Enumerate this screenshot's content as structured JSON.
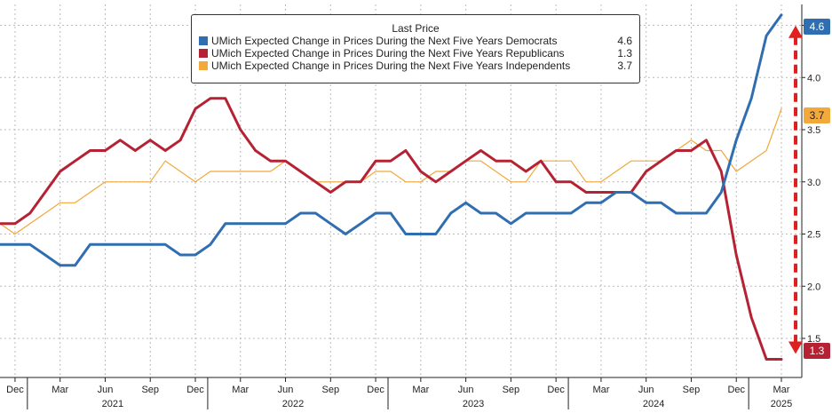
{
  "chart_data": {
    "type": "line",
    "title": "",
    "legend_title": "Last Price",
    "legend_position": "top-center",
    "grid": true,
    "y_axis_side": "right",
    "ylim": [
      1.1,
      4.7
    ],
    "y_ticks": [
      "1.5",
      "2.0",
      "2.5",
      "3.0",
      "3.5",
      "4.0",
      "4.5"
    ],
    "x_tick_labels": [
      "Dec",
      "Mar",
      "Jun",
      "Sep",
      "Dec",
      "Mar",
      "Jun",
      "Sep",
      "Dec",
      "Mar",
      "Jun",
      "Sep",
      "Dec",
      "Mar",
      "Jun",
      "Sep",
      "Dec",
      "Mar"
    ],
    "year_labels": [
      "2021",
      "2022",
      "2023",
      "2024",
      "2025"
    ],
    "x": [
      "2020-11",
      "2020-12",
      "2021-01",
      "2021-02",
      "2021-03",
      "2021-04",
      "2021-05",
      "2021-06",
      "2021-07",
      "2021-08",
      "2021-09",
      "2021-10",
      "2021-11",
      "2021-12",
      "2022-01",
      "2022-02",
      "2022-03",
      "2022-04",
      "2022-05",
      "2022-06",
      "2022-07",
      "2022-08",
      "2022-09",
      "2022-10",
      "2022-11",
      "2022-12",
      "2023-01",
      "2023-02",
      "2023-03",
      "2023-04",
      "2023-05",
      "2023-06",
      "2023-07",
      "2023-08",
      "2023-09",
      "2023-10",
      "2023-11",
      "2023-12",
      "2024-01",
      "2024-02",
      "2024-03",
      "2024-04",
      "2024-05",
      "2024-06",
      "2024-07",
      "2024-08",
      "2024-09",
      "2024-10",
      "2024-11",
      "2024-12",
      "2025-01",
      "2025-02",
      "2025-03"
    ],
    "series": [
      {
        "name": "UMich Expected Change in Prices During the Next Five Years Democrats",
        "last_value": "4.6",
        "color": "#2f6eb1",
        "values": [
          2.4,
          2.4,
          2.4,
          2.3,
          2.2,
          2.2,
          2.4,
          2.4,
          2.4,
          2.4,
          2.4,
          2.4,
          2.3,
          2.3,
          2.4,
          2.6,
          2.6,
          2.6,
          2.6,
          2.6,
          2.7,
          2.7,
          2.6,
          2.5,
          2.6,
          2.7,
          2.7,
          2.5,
          2.5,
          2.5,
          2.7,
          2.8,
          2.7,
          2.7,
          2.6,
          2.7,
          2.7,
          2.7,
          2.7,
          2.8,
          2.8,
          2.9,
          2.9,
          2.8,
          2.8,
          2.7,
          2.7,
          2.7,
          2.9,
          3.4,
          3.8,
          4.4,
          4.6
        ]
      },
      {
        "name": "UMich Expected Change in Prices During the Next Five Years Republicans",
        "last_value": "1.3",
        "color": "#b52233",
        "values": [
          2.6,
          2.6,
          2.7,
          2.9,
          3.1,
          3.2,
          3.3,
          3.3,
          3.4,
          3.3,
          3.4,
          3.3,
          3.4,
          3.7,
          3.8,
          3.8,
          3.5,
          3.3,
          3.2,
          3.2,
          3.1,
          3.0,
          2.9,
          3.0,
          3.0,
          3.2,
          3.2,
          3.3,
          3.1,
          3.0,
          3.1,
          3.2,
          3.3,
          3.2,
          3.2,
          3.1,
          3.2,
          3.0,
          3.0,
          2.9,
          2.9,
          2.9,
          2.9,
          3.1,
          3.2,
          3.3,
          3.3,
          3.4,
          3.1,
          2.3,
          1.7,
          1.3,
          1.3
        ]
      },
      {
        "name": "UMich Expected Change in Prices During the Next Five Years Independents",
        "last_value": "3.7",
        "color": "#f2a83a",
        "values": [
          2.6,
          2.5,
          2.6,
          2.7,
          2.8,
          2.8,
          2.9,
          3.0,
          3.0,
          3.0,
          3.0,
          3.2,
          3.1,
          3.0,
          3.1,
          3.1,
          3.1,
          3.1,
          3.1,
          3.2,
          3.1,
          3.0,
          3.0,
          3.0,
          3.0,
          3.1,
          3.1,
          3.0,
          3.0,
          3.1,
          3.1,
          3.2,
          3.2,
          3.1,
          3.0,
          3.0,
          3.2,
          3.2,
          3.2,
          3.0,
          3.0,
          3.1,
          3.2,
          3.2,
          3.2,
          3.3,
          3.4,
          3.3,
          3.3,
          3.1,
          3.2,
          3.3,
          3.7
        ]
      }
    ]
  }
}
